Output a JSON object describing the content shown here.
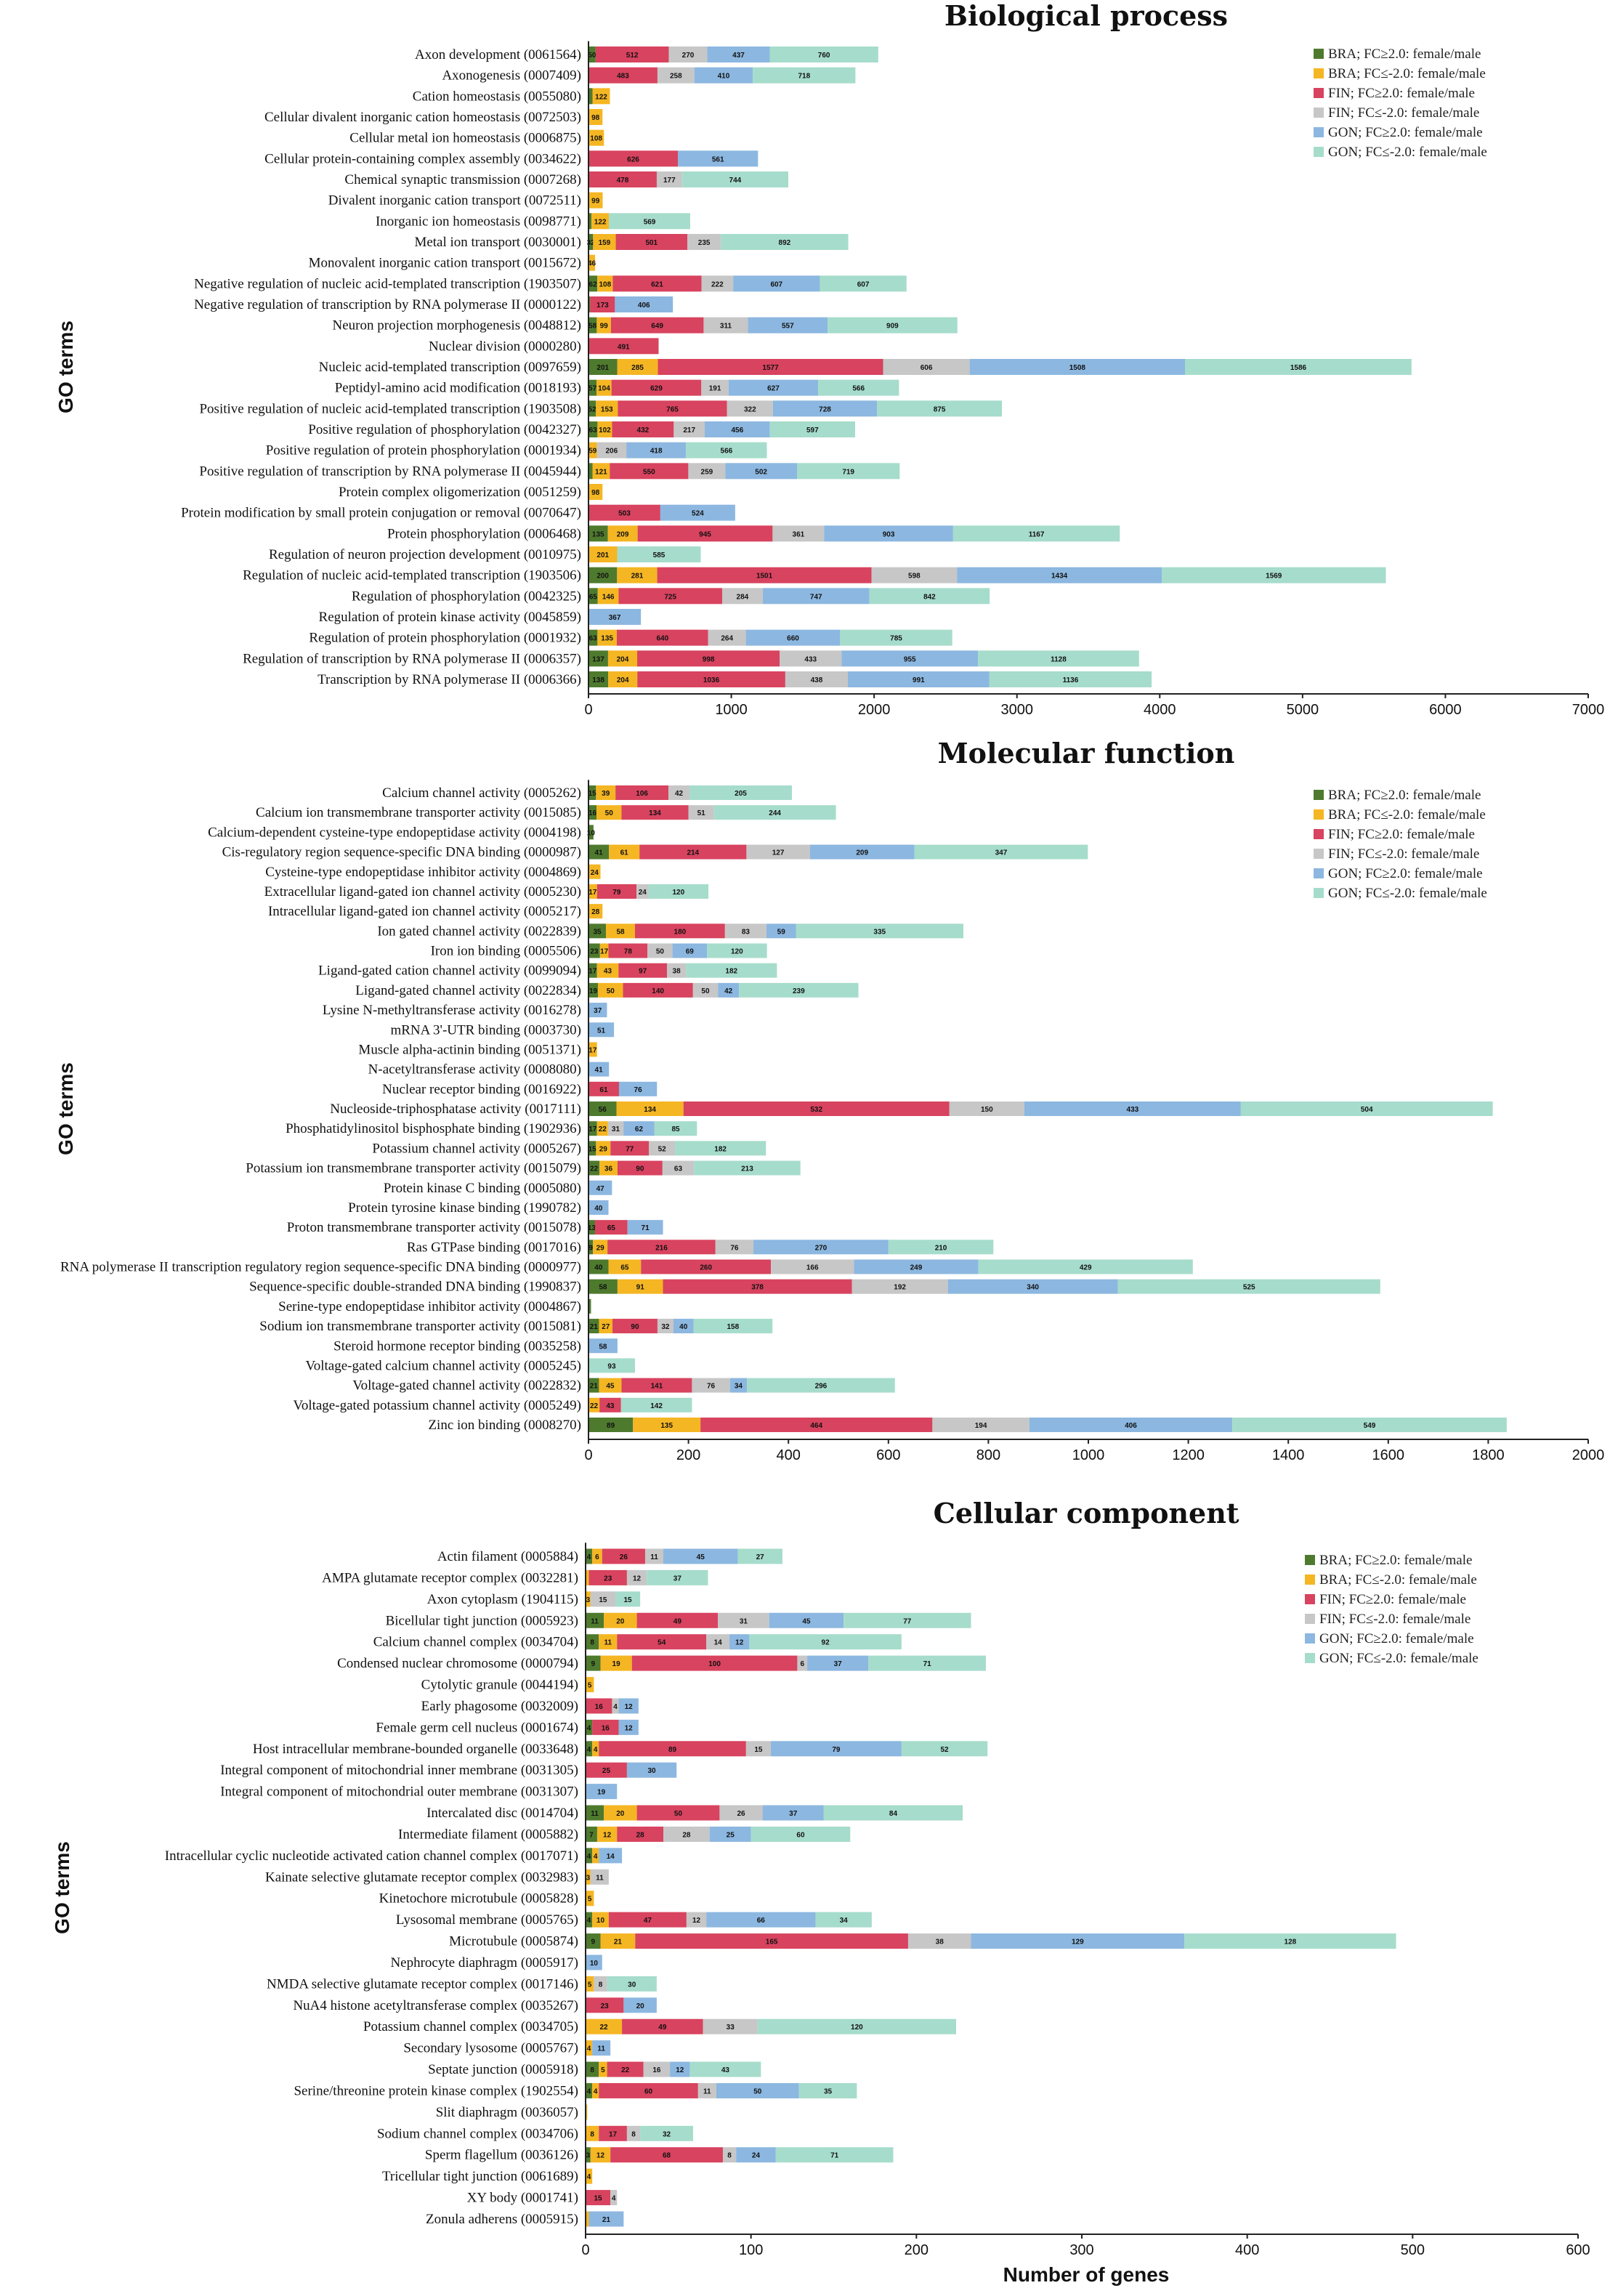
{
  "colors": [
    "#4e7a2e",
    "#f5b623",
    "#d8435f",
    "#c7c7c7",
    "#8cb7e0",
    "#a6dccb"
  ],
  "series_names": [
    "BRA; FC≥2.0: female/male",
    "BRA; FC≤-2.0: female/male",
    "FIN; FC≥2.0: female/male",
    "FIN; FC≤-2.0: female/male",
    "GON; FC≥2.0: female/male",
    "GON; FC≤-2.0: female/male"
  ],
  "chart_data": [
    {
      "type": "bar",
      "orientation": "horizontal-stacked",
      "title": "Biological process",
      "ylabel": "GO terms",
      "xlabel": "",
      "xlim": [
        0,
        7000
      ],
      "xticks": [
        0,
        1000,
        2000,
        3000,
        4000,
        5000,
        6000,
        7000
      ],
      "categories": [
        "Axon development (0061564)",
        "Axonogenesis (0007409)",
        "Cation homeostasis (0055080)",
        "Cellular divalent inorganic cation homeostasis (0072503)",
        "Cellular metal ion homeostasis (0006875)",
        "Cellular protein-containing complex assembly (0034622)",
        "Chemical synaptic transmission (0007268)",
        "Divalent inorganic cation transport (0072511)",
        "Inorganic ion homeostasis (0098771)",
        "Metal ion transport (0030001)",
        "Monovalent inorganic cation transport (0015672)",
        "Negative regulation of nucleic acid-templated transcription (1903507)",
        "Negative regulation of transcription by RNA polymerase II (0000122)",
        "Neuron projection morphogenesis (0048812)",
        "Nuclear division (0000280)",
        "Nucleic acid-templated transcription (0097659)",
        "Peptidyl-amino acid modification (0018193)",
        "Positive regulation of nucleic acid-templated transcription (1903508)",
        "Positive regulation of phosphorylation (0042327)",
        "Positive regulation of protein phosphorylation (0001934)",
        "Positive regulation of transcription by RNA polymerase II (0045944)",
        "Protein complex oligomerization (0051259)",
        "Protein modification by small protein conjugation or removal (0070647)",
        "Protein phosphorylation (0006468)",
        "Regulation of neuron projection development (0010975)",
        "Regulation of nucleic acid-templated transcription (1903506)",
        "Regulation of phosphorylation (0042325)",
        "Regulation of protein kinase activity (0045859)",
        "Regulation of protein phosphorylation (0001932)",
        "Regulation of transcription by RNA polymerase II (0006357)",
        "Transcription by RNA polymerase II (0006366)"
      ],
      "series": [
        {
          "name": "BRA; FC≥2.0: female/male",
          "values": [
            50,
            0,
            28,
            0,
            0,
            0,
            0,
            0,
            21,
            32,
            0,
            62,
            12,
            58,
            0,
            201,
            57,
            52,
            63,
            0,
            28,
            0,
            0,
            135,
            0,
            200,
            65,
            0,
            63,
            137,
            138
          ]
        },
        {
          "name": "BRA; FC≤-2.0: female/male",
          "values": [
            0,
            0,
            122,
            98,
            108,
            0,
            0,
            99,
            122,
            159,
            46,
            108,
            0,
            99,
            0,
            285,
            104,
            153,
            102,
            59,
            121,
            98,
            0,
            209,
            201,
            281,
            146,
            0,
            135,
            204,
            204
          ]
        },
        {
          "name": "FIN; FC≥2.0: female/male",
          "values": [
            512,
            483,
            0,
            0,
            0,
            626,
            478,
            0,
            0,
            501,
            0,
            621,
            173,
            649,
            491,
            1577,
            629,
            765,
            432,
            0,
            550,
            0,
            503,
            945,
            0,
            1501,
            725,
            0,
            640,
            998,
            1036
          ]
        },
        {
          "name": "FIN; FC≤-2.0: female/male",
          "values": [
            270,
            258,
            0,
            0,
            0,
            0,
            177,
            0,
            0,
            235,
            0,
            222,
            0,
            311,
            0,
            606,
            191,
            322,
            217,
            206,
            259,
            0,
            0,
            361,
            0,
            598,
            284,
            0,
            264,
            433,
            438
          ]
        },
        {
          "name": "GON; FC≥2.0: female/male",
          "values": [
            437,
            410,
            0,
            0,
            0,
            561,
            0,
            0,
            0,
            0,
            0,
            607,
            406,
            557,
            0,
            1508,
            627,
            728,
            456,
            418,
            502,
            0,
            524,
            903,
            0,
            1434,
            747,
            367,
            660,
            955,
            991
          ]
        },
        {
          "name": "GON; FC≤-2.0: female/male",
          "values": [
            760,
            718,
            0,
            0,
            0,
            0,
            744,
            0,
            569,
            892,
            0,
            607,
            0,
            909,
            0,
            1586,
            566,
            875,
            597,
            566,
            719,
            0,
            0,
            1167,
            585,
            1569,
            842,
            0,
            785,
            1128,
            1136
          ]
        }
      ]
    },
    {
      "type": "bar",
      "orientation": "horizontal-stacked",
      "title": "Molecular function",
      "ylabel": "GO terms",
      "xlabel": "",
      "xlim": [
        0,
        2000
      ],
      "xticks": [
        0,
        200,
        400,
        600,
        800,
        1000,
        1200,
        1400,
        1600,
        1800,
        2000
      ],
      "categories": [
        "Calcium channel activity (0005262)",
        "Calcium ion transmembrane transporter activity (0015085)",
        "Calcium-dependent cysteine-type endopeptidase activity (0004198)",
        "Cis-regulatory region sequence-specific DNA binding (0000987)",
        "Cysteine-type endopeptidase inhibitor activity (0004869)",
        "Extracellular ligand-gated ion channel activity (0005230)",
        "Intracellular ligand-gated ion channel activity (0005217)",
        "Ion gated channel activity (0022839)",
        "Iron ion binding (0005506)",
        "Ligand-gated cation channel activity (0099094)",
        "Ligand-gated channel activity (0022834)",
        "Lysine N-methyltransferase activity (0016278)",
        "mRNA 3'-UTR binding (0003730)",
        "Muscle alpha-actinin binding (0051371)",
        "N-acetyltransferase activity (0008080)",
        "Nuclear receptor binding (0016922)",
        "Nucleoside-triphosphatase activity (0017111)",
        "Phosphatidylinositol bisphosphate binding (1902936)",
        "Potassium channel activity (0005267)",
        "Potassium ion transmembrane transporter activity (0015079)",
        "Protein kinase C binding (0005080)",
        "Protein tyrosine kinase binding (1990782)",
        "Proton transmembrane transporter activity (0015078)",
        "Ras GTPase binding (0017016)",
        "RNA polymerase II transcription regulatory region sequence-specific DNA binding (0000977)",
        "Sequence-specific double-stranded DNA binding (1990837)",
        "Serine-type endopeptidase inhibitor activity (0004867)",
        "Sodium ion transmembrane transporter activity (0015081)",
        "Steroid hormone receptor binding (0035258)",
        "Voltage-gated calcium channel activity (0005245)",
        "Voltage-gated channel activity (0022832)",
        "Voltage-gated potassium channel activity (0005249)",
        "Zinc ion binding (0008270)"
      ],
      "series": [
        {
          "name": "BRA; FC≥2.0: female/male",
          "values": [
            15,
            16,
            10,
            41,
            0,
            0,
            0,
            35,
            23,
            17,
            19,
            0,
            0,
            0,
            0,
            0,
            56,
            17,
            15,
            22,
            0,
            0,
            13,
            9,
            40,
            58,
            5,
            21,
            0,
            0,
            21,
            0,
            89
          ]
        },
        {
          "name": "BRA; FC≤-2.0: female/male",
          "values": [
            39,
            50,
            0,
            61,
            24,
            17,
            28,
            58,
            17,
            43,
            50,
            0,
            0,
            17,
            0,
            0,
            134,
            22,
            29,
            36,
            0,
            0,
            0,
            29,
            65,
            91,
            0,
            27,
            0,
            0,
            45,
            22,
            135
          ]
        },
        {
          "name": "FIN; FC≥2.0: female/male",
          "values": [
            106,
            134,
            0,
            214,
            0,
            79,
            0,
            180,
            78,
            97,
            140,
            0,
            0,
            0,
            0,
            61,
            532,
            0,
            77,
            90,
            0,
            0,
            65,
            216,
            260,
            378,
            0,
            90,
            0,
            0,
            141,
            43,
            464
          ]
        },
        {
          "name": "FIN; FC≤-2.0: female/male",
          "values": [
            42,
            51,
            0,
            127,
            0,
            24,
            0,
            83,
            50,
            38,
            50,
            0,
            0,
            0,
            0,
            0,
            150,
            31,
            52,
            63,
            0,
            0,
            0,
            76,
            166,
            192,
            0,
            32,
            0,
            0,
            76,
            0,
            194
          ]
        },
        {
          "name": "GON; FC≥2.0: female/male",
          "values": [
            0,
            0,
            0,
            209,
            0,
            0,
            0,
            59,
            69,
            0,
            42,
            37,
            51,
            0,
            41,
            76,
            433,
            62,
            0,
            0,
            47,
            40,
            71,
            270,
            249,
            340,
            0,
            40,
            58,
            0,
            34,
            0,
            406
          ]
        },
        {
          "name": "GON; FC≤-2.0: female/male",
          "values": [
            205,
            244,
            0,
            347,
            0,
            120,
            0,
            335,
            120,
            182,
            239,
            0,
            0,
            0,
            0,
            0,
            504,
            85,
            182,
            213,
            0,
            0,
            0,
            210,
            429,
            525,
            0,
            158,
            0,
            93,
            296,
            142,
            549
          ]
        }
      ]
    },
    {
      "type": "bar",
      "orientation": "horizontal-stacked",
      "title": "Cellular component",
      "ylabel": "GO terms",
      "xlabel": "Number of genes",
      "xlim": [
        0,
        600
      ],
      "xticks": [
        0,
        100,
        200,
        300,
        400,
        500,
        600
      ],
      "categories": [
        "Actin filament (0005884)",
        "AMPA glutamate receptor complex (0032281)",
        "Axon cytoplasm (1904115)",
        "Bicellular tight junction (0005923)",
        "Calcium channel complex (0034704)",
        "Condensed nuclear chromosome (0000794)",
        "Cytolytic granule (0044194)",
        "Early phagosome (0032009)",
        "Female germ cell nucleus (0001674)",
        "Host intracellular membrane-bounded organelle (0033648)",
        "Integral component of mitochondrial inner membrane (0031305)",
        "Integral component of mitochondrial outer membrane (0031307)",
        "Intercalated disc (0014704)",
        "Intermediate filament (0005882)",
        "Intracellular cyclic nucleotide activated cation channel complex (0017071)",
        "Kainate selective glutamate receptor complex (0032983)",
        "Kinetochore microtubule (0005828)",
        "Lysosomal membrane (0005765)",
        "Microtubule (0005874)",
        "Nephrocyte diaphragm (0005917)",
        "NMDA selective glutamate receptor complex (0017146)",
        "NuA4 histone acetyltransferase complex (0035267)",
        "Potassium channel complex (0034705)",
        "Secondary lysosome (0005767)",
        "Septate junction (0005918)",
        "Serine/threonine protein kinase complex (1902554)",
        "Slit diaphragm (0036057)",
        "Sodium channel complex (0034706)",
        "Sperm flagellum (0036126)",
        "Tricellular tight junction (0061689)",
        "XY body (0001741)",
        "Zonula adherens (0005915)"
      ],
      "series": [
        {
          "name": "BRA; FC≥2.0: female/male",
          "values": [
            4,
            0,
            0,
            11,
            8,
            9,
            0,
            0,
            4,
            4,
            0,
            0,
            11,
            7,
            4,
            0,
            0,
            4,
            9,
            0,
            0,
            0,
            0,
            0,
            8,
            4,
            0,
            0,
            3,
            0,
            0,
            0
          ]
        },
        {
          "name": "BRA; FC≤-2.0: female/male",
          "values": [
            6,
            2,
            3,
            20,
            11,
            19,
            5,
            0,
            0,
            4,
            0,
            0,
            20,
            12,
            4,
            3,
            5,
            10,
            21,
            0,
            5,
            0,
            22,
            4,
            5,
            4,
            1,
            8,
            12,
            4,
            0,
            2
          ]
        },
        {
          "name": "FIN; FC≥2.0: female/male",
          "values": [
            26,
            23,
            0,
            49,
            54,
            100,
            0,
            16,
            16,
            89,
            25,
            0,
            50,
            28,
            0,
            0,
            0,
            47,
            165,
            0,
            0,
            23,
            49,
            0,
            22,
            60,
            0,
            17,
            68,
            0,
            15,
            0
          ]
        },
        {
          "name": "FIN; FC≤-2.0: female/male",
          "values": [
            11,
            12,
            15,
            31,
            14,
            6,
            0,
            4,
            0,
            15,
            0,
            0,
            26,
            28,
            0,
            11,
            0,
            12,
            38,
            0,
            8,
            0,
            33,
            0,
            16,
            11,
            0,
            8,
            8,
            0,
            4,
            0
          ]
        },
        {
          "name": "GON; FC≥2.0: female/male",
          "values": [
            45,
            0,
            0,
            45,
            12,
            37,
            0,
            12,
            12,
            79,
            30,
            19,
            37,
            25,
            14,
            0,
            0,
            66,
            129,
            10,
            0,
            20,
            0,
            11,
            12,
            50,
            0,
            0,
            24,
            0,
            0,
            21
          ]
        },
        {
          "name": "GON; FC≤-2.0: female/male",
          "values": [
            27,
            37,
            15,
            77,
            92,
            71,
            0,
            0,
            0,
            52,
            0,
            0,
            84,
            60,
            0,
            0,
            0,
            34,
            128,
            0,
            30,
            0,
            120,
            0,
            43,
            35,
            0,
            32,
            71,
            0,
            0,
            0
          ]
        }
      ]
    }
  ]
}
